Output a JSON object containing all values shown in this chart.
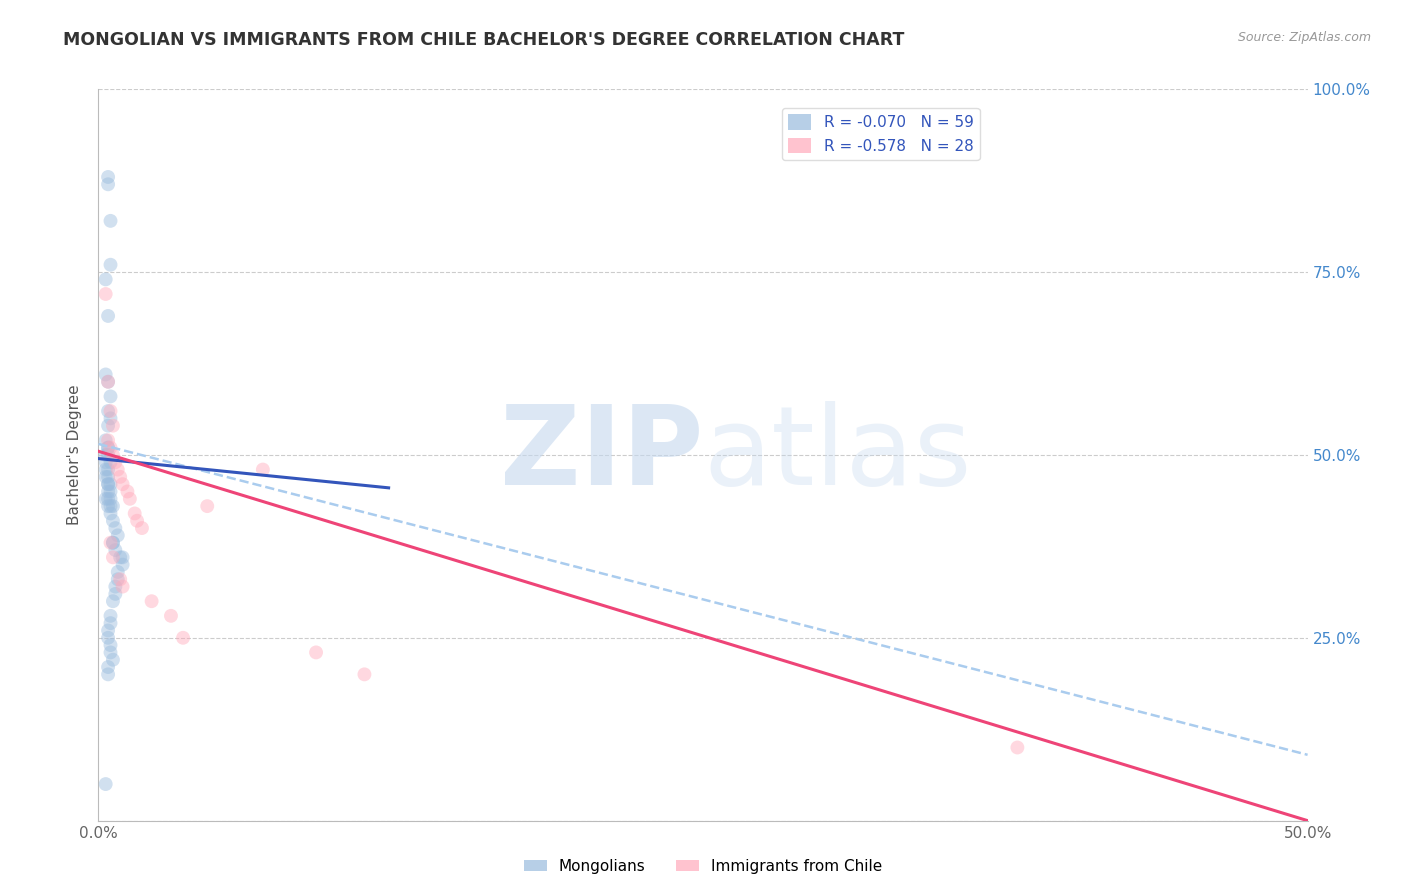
{
  "title": "MONGOLIAN VS IMMIGRANTS FROM CHILE BACHELOR'S DEGREE CORRELATION CHART",
  "source": "Source: ZipAtlas.com",
  "ylabel": "Bachelor's Degree",
  "xlim": [
    0.0,
    0.5
  ],
  "ylim": [
    0.0,
    1.0
  ],
  "blue_color": "#99BBDD",
  "pink_color": "#FFAABB",
  "blue_line_color": "#3355BB",
  "pink_line_color": "#EE4477",
  "dashed_line_color": "#AACCEE",
  "right_tick_color": "#4488CC",
  "background_color": "#FFFFFF",
  "grid_color": "#CCCCCC",
  "title_fontsize": 12.5,
  "tick_fontsize": 11,
  "marker_size": 100,
  "marker_alpha": 0.45,
  "blue_scatter_x": [
    0.004,
    0.004,
    0.005,
    0.005,
    0.003,
    0.004,
    0.003,
    0.004,
    0.005,
    0.004,
    0.005,
    0.004,
    0.003,
    0.004,
    0.004,
    0.003,
    0.004,
    0.005,
    0.003,
    0.004,
    0.003,
    0.004,
    0.003,
    0.004,
    0.004,
    0.005,
    0.004,
    0.005,
    0.003,
    0.004,
    0.005,
    0.006,
    0.005,
    0.004,
    0.005,
    0.006,
    0.007,
    0.008,
    0.006,
    0.006,
    0.007,
    0.009,
    0.01,
    0.01,
    0.008,
    0.008,
    0.007,
    0.007,
    0.006,
    0.005,
    0.005,
    0.004,
    0.004,
    0.005,
    0.005,
    0.006,
    0.004,
    0.004,
    0.003
  ],
  "blue_scatter_y": [
    0.88,
    0.87,
    0.82,
    0.76,
    0.74,
    0.69,
    0.61,
    0.6,
    0.58,
    0.56,
    0.55,
    0.54,
    0.52,
    0.51,
    0.51,
    0.5,
    0.5,
    0.49,
    0.49,
    0.48,
    0.48,
    0.47,
    0.47,
    0.46,
    0.46,
    0.46,
    0.45,
    0.45,
    0.44,
    0.44,
    0.44,
    0.43,
    0.43,
    0.43,
    0.42,
    0.41,
    0.4,
    0.39,
    0.38,
    0.38,
    0.37,
    0.36,
    0.36,
    0.35,
    0.34,
    0.33,
    0.32,
    0.31,
    0.3,
    0.28,
    0.27,
    0.26,
    0.25,
    0.24,
    0.23,
    0.22,
    0.21,
    0.2,
    0.05
  ],
  "pink_scatter_x": [
    0.003,
    0.004,
    0.005,
    0.006,
    0.004,
    0.005,
    0.006,
    0.007,
    0.008,
    0.009,
    0.01,
    0.012,
    0.013,
    0.015,
    0.016,
    0.018,
    0.005,
    0.006,
    0.009,
    0.01,
    0.022,
    0.03,
    0.035,
    0.045,
    0.068,
    0.09,
    0.11,
    0.38
  ],
  "pink_scatter_y": [
    0.72,
    0.6,
    0.56,
    0.54,
    0.52,
    0.51,
    0.5,
    0.49,
    0.48,
    0.47,
    0.46,
    0.45,
    0.44,
    0.42,
    0.41,
    0.4,
    0.38,
    0.36,
    0.33,
    0.32,
    0.3,
    0.28,
    0.25,
    0.43,
    0.48,
    0.23,
    0.2,
    0.1
  ],
  "blue_line_x": [
    0.0,
    0.12
  ],
  "blue_line_y": [
    0.495,
    0.455
  ],
  "pink_line_x": [
    0.0,
    0.5
  ],
  "pink_line_y": [
    0.505,
    0.0
  ],
  "dashed_line_x": [
    0.0,
    0.5
  ],
  "dashed_line_y": [
    0.515,
    0.09
  ]
}
